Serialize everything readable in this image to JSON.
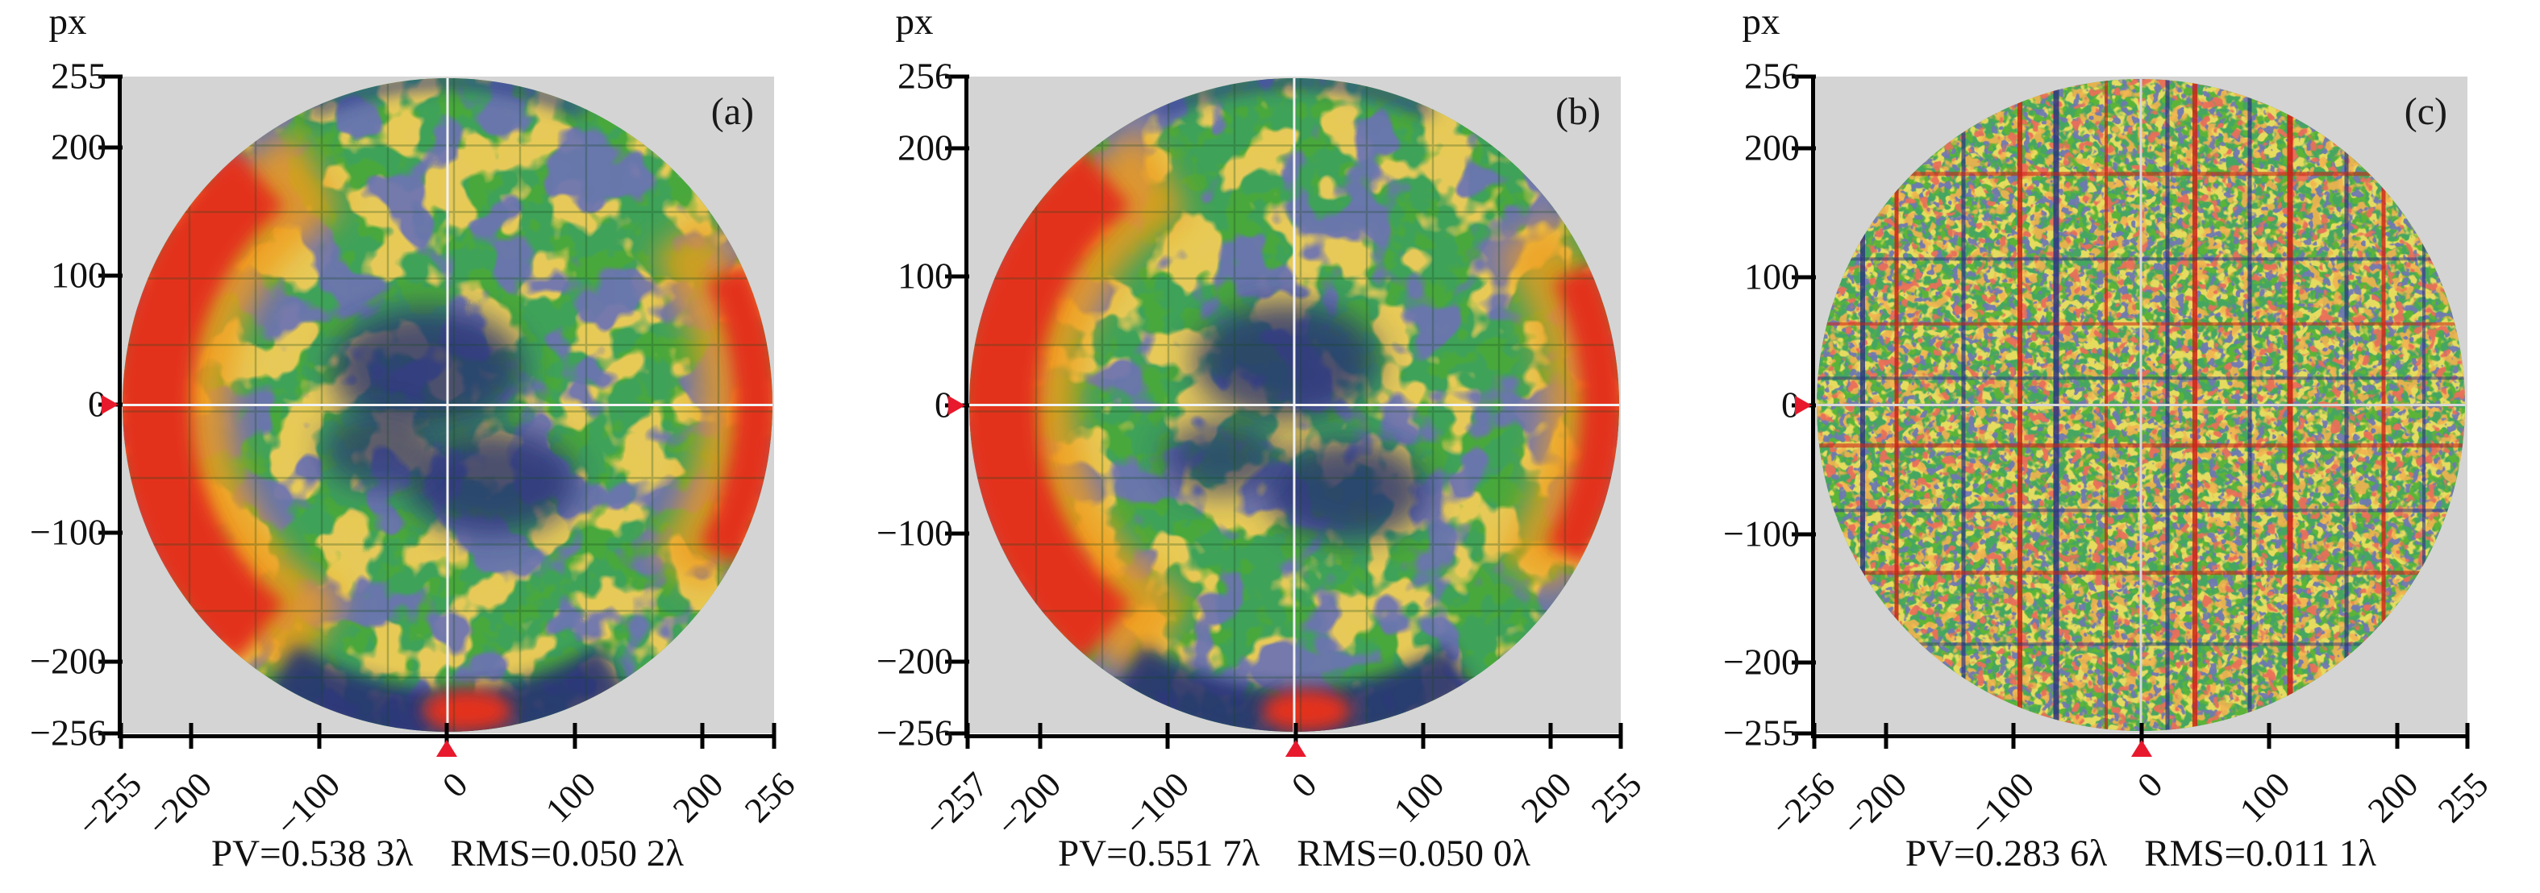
{
  "page": {
    "background": "#ffffff"
  },
  "panels": [
    {
      "letter": "(a)",
      "axis_unit": "px",
      "y_ticks": [
        "255",
        "200",
        "100",
        "0",
        "−100",
        "−200",
        "−256"
      ],
      "x_ticks": [
        "−255",
        "−200",
        "−100",
        "0",
        "100",
        "200",
        "256"
      ],
      "caption": {
        "pv": "PV=0.538 3λ",
        "rms": "RMS=0.050 2λ"
      }
    },
    {
      "letter": "(b)",
      "axis_unit": "px",
      "y_ticks": [
        "256",
        "200",
        "100",
        "0",
        "−100",
        "−200",
        "−256"
      ],
      "x_ticks": [
        "−257",
        "−200",
        "−100",
        "0",
        "100",
        "200",
        "255"
      ],
      "caption": {
        "pv": "PV=0.551 7λ",
        "rms": "RMS=0.050 0λ"
      }
    },
    {
      "letter": "(c)",
      "axis_unit": "px",
      "y_ticks": [
        "256",
        "200",
        "100",
        "0",
        "−100",
        "−200",
        "−255"
      ],
      "x_ticks": [
        "−256",
        "−200",
        "−100",
        "0",
        "100",
        "200",
        "255"
      ],
      "caption": {
        "pv": "PV=0.283 6λ",
        "rms": "RMS=0.011 1λ"
      }
    }
  ],
  "colors": {
    "plot_background": "#d4d4d4",
    "axis": "#000000",
    "zero_marker_red": "#e8192c",
    "crosshair": "#f2f2f2",
    "map_green": "#49a83c",
    "map_navy": "#273173",
    "map_red": "#e3301c",
    "map_orange": "#ef9c1a"
  },
  "chart_data": [
    {
      "type": "heatmap",
      "panel": "(a)",
      "shape": "circular-aperture wavefront phase map",
      "x_unit": "px",
      "y_unit": "px",
      "x_range": [
        -255,
        256
      ],
      "y_range": [
        -256,
        255
      ],
      "x_ticks": [
        -255,
        -200,
        -100,
        0,
        100,
        200,
        256
      ],
      "y_ticks": [
        255,
        200,
        100,
        0,
        -100,
        -200,
        -256
      ],
      "pv_lambda": 0.5383,
      "rms_lambda": 0.0502,
      "annotation": "PV=0.538 3λ  RMS=0.050 2λ",
      "zero_markers": {
        "x": 0,
        "y": 0
      },
      "crosshair_center": [
        0,
        0
      ],
      "colormap_low_to_high": [
        "#273173",
        "#49a83c",
        "#cadc3a",
        "#ef9c1a",
        "#e3301c"
      ],
      "description": "Mottled green map with red/orange band along left rim and mid-right rim, dark navy blobs at center and bottom, navy rim at top/bottom, faint square fringe grid, white crosshair at (0,0)."
    },
    {
      "type": "heatmap",
      "panel": "(b)",
      "shape": "circular-aperture wavefront phase map",
      "x_unit": "px",
      "y_unit": "px",
      "x_range": [
        -257,
        255
      ],
      "y_range": [
        -256,
        256
      ],
      "x_ticks": [
        -257,
        -200,
        -100,
        0,
        100,
        200,
        255
      ],
      "y_ticks": [
        256,
        200,
        100,
        0,
        -100,
        -200,
        -256
      ],
      "pv_lambda": 0.5517,
      "rms_lambda": 0.05,
      "annotation": "PV=0.551 7λ  RMS=0.050 0λ",
      "zero_markers": {
        "x": 0,
        "y": 0
      },
      "crosshair_center": [
        0,
        0
      ],
      "colormap_low_to_high": [
        "#273173",
        "#49a83c",
        "#cadc3a",
        "#ef9c1a",
        "#e3301c"
      ],
      "description": "Nearly identical to panel (a): green mottle, red left rim and mid-right rim, navy center and bottom blobs, faint fringe grid, white crosshair."
    },
    {
      "type": "heatmap",
      "panel": "(c)",
      "shape": "circular-aperture wavefront phase map",
      "x_unit": "px",
      "y_unit": "px",
      "x_range": [
        -256,
        255
      ],
      "y_range": [
        -255,
        256
      ],
      "x_ticks": [
        -256,
        -200,
        -100,
        0,
        100,
        200,
        255
      ],
      "y_ticks": [
        256,
        200,
        100,
        0,
        -100,
        -200,
        -255
      ],
      "pv_lambda": 0.2836,
      "rms_lambda": 0.0111,
      "annotation": "PV=0.283 6λ  RMS=0.011 1λ",
      "zero_markers": {
        "x": 0,
        "y": 0
      },
      "crosshair_center": [
        0,
        0
      ],
      "colormap_low_to_high": [
        "#273173",
        "#5bb437",
        "#e8c020",
        "#ef9c1a",
        "#d8331c"
      ],
      "description": "Fine-grained green/yellow speckle with thin vertical/horizontal red and navy grid streaks across the whole aperture, gray crosshair at (0,0)."
    }
  ]
}
